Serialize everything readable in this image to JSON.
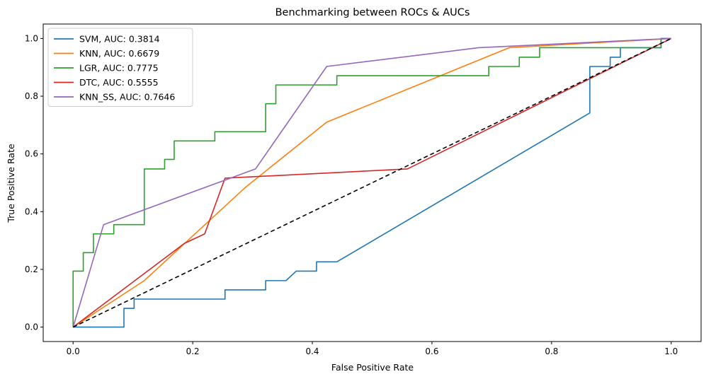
{
  "chart_data": {
    "type": "line",
    "title": "Benchmarking between ROCs & AUCs",
    "xlabel": "False Positive Rate",
    "ylabel": "True Positive Rate",
    "xlim": [
      -0.05,
      1.05
    ],
    "ylim": [
      -0.05,
      1.05
    ],
    "xticks": [
      "0.0",
      "0.2",
      "0.4",
      "0.6",
      "0.8",
      "1.0"
    ],
    "yticks": [
      "0.0",
      "0.2",
      "0.4",
      "0.6",
      "0.8",
      "1.0"
    ],
    "grid": false,
    "legend_position": "upper-left",
    "series": [
      {
        "name": "SVM, AUC: 0.3814",
        "color": "#1f77b4",
        "x": [
          0,
          0.085,
          0.085,
          0.102,
          0.102,
          0.254,
          0.254,
          0.322,
          0.322,
          0.356,
          0.373,
          0.373,
          0.407,
          0.407,
          0.441,
          0.864,
          0.864,
          0.898,
          0.898,
          0.915,
          0.915,
          0.983,
          0.983,
          1.0
        ],
        "y": [
          0,
          0,
          0.065,
          0.065,
          0.097,
          0.097,
          0.129,
          0.129,
          0.161,
          0.161,
          0.194,
          0.194,
          0.194,
          0.226,
          0.226,
          0.742,
          0.903,
          0.903,
          0.935,
          0.935,
          0.968,
          0.968,
          1.0,
          1.0
        ]
      },
      {
        "name": "KNN, AUC: 0.6679",
        "color": "#ff7f0e",
        "x": [
          0,
          0.119,
          0.288,
          0.424,
          0.729,
          1.0
        ],
        "y": [
          0,
          0.161,
          0.484,
          0.71,
          0.968,
          1.0
        ]
      },
      {
        "name": "LGR, AUC: 0.7775",
        "color": "#2ca02c",
        "x": [
          0,
          0,
          0.017,
          0.017,
          0.034,
          0.034,
          0.068,
          0.068,
          0.119,
          0.119,
          0.153,
          0.153,
          0.169,
          0.169,
          0.237,
          0.237,
          0.322,
          0.322,
          0.339,
          0.339,
          0.441,
          0.441,
          0.695,
          0.695,
          0.746,
          0.746,
          0.78,
          0.78,
          0.983,
          0.983,
          1.0
        ],
        "y": [
          0,
          0.194,
          0.194,
          0.258,
          0.258,
          0.323,
          0.323,
          0.355,
          0.355,
          0.548,
          0.548,
          0.581,
          0.581,
          0.645,
          0.645,
          0.677,
          0.677,
          0.774,
          0.774,
          0.839,
          0.839,
          0.871,
          0.871,
          0.903,
          0.903,
          0.935,
          0.935,
          0.968,
          0.968,
          1.0,
          1.0
        ]
      },
      {
        "name": "DTC, AUC: 0.5555",
        "color": "#d62728",
        "x": [
          0,
          0.186,
          0.22,
          0.254,
          0.559,
          1.0
        ],
        "y": [
          0,
          0.29,
          0.323,
          0.516,
          0.548,
          1.0
        ]
      },
      {
        "name": "KNN_SS, AUC: 0.7646",
        "color": "#9467bd",
        "x": [
          0,
          0.051,
          0.305,
          0.424,
          0.678,
          1.0
        ],
        "y": [
          0,
          0.355,
          0.548,
          0.903,
          0.968,
          1.0
        ]
      }
    ],
    "reference_line": {
      "x": [
        0,
        1
      ],
      "y": [
        0,
        1
      ],
      "color": "#000000",
      "style": "dashed"
    }
  }
}
